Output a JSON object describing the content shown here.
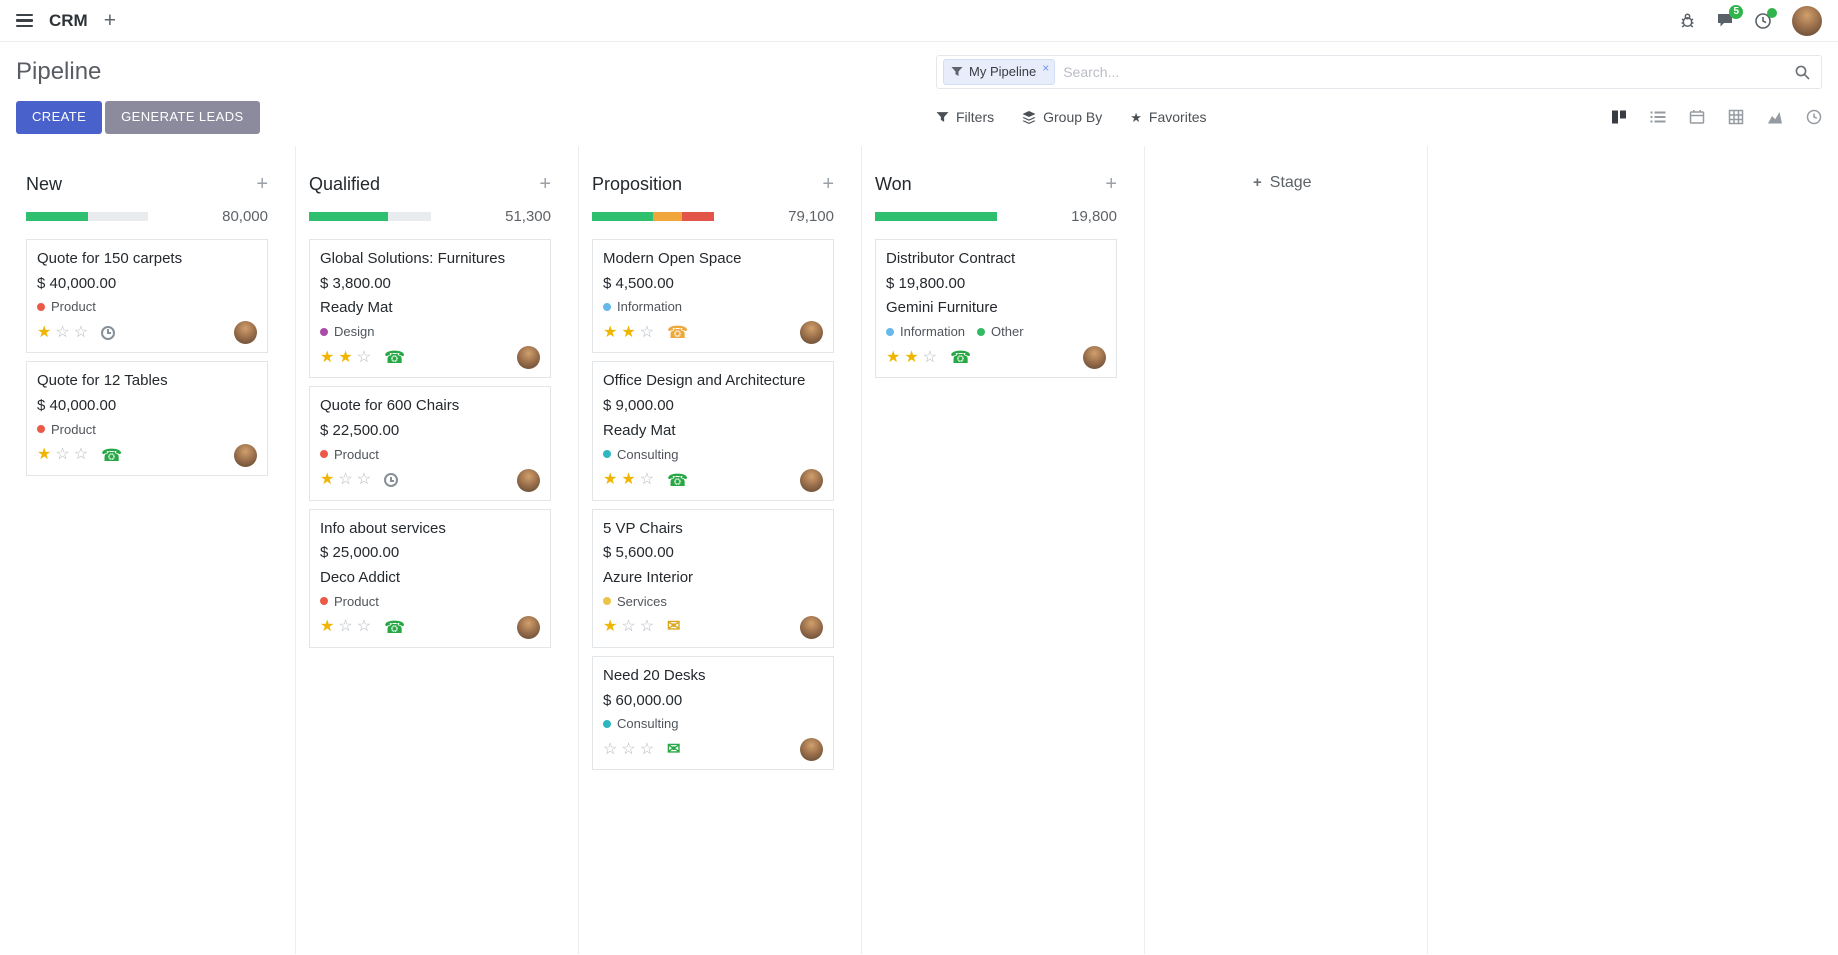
{
  "navbar": {
    "app": "CRM",
    "messages_badge": "5"
  },
  "control_panel": {
    "title": "Pipeline",
    "search": {
      "facet_label": "My Pipeline",
      "placeholder": "Search..."
    },
    "create_label": "CREATE",
    "generate_leads_label": "GENERATE LEADS",
    "filters_label": "Filters",
    "group_by_label": "Group By",
    "favorites_label": "Favorites",
    "view_switcher": [
      "kanban",
      "list",
      "calendar",
      "pivot",
      "graph",
      "activity"
    ],
    "active_view": "kanban"
  },
  "colors": {
    "primary_button": "#4961ca",
    "secondary_button": "#8b8b9d",
    "badge": "#31b44b",
    "star_active": "#efb500",
    "progress_success": "#2ec06f",
    "progress_warning": "#f0a63a",
    "progress_danger": "#e25649"
  },
  "board": {
    "add_stage_label": "Stage",
    "columns": [
      {
        "name": "New",
        "total": "80,000",
        "progress": [
          {
            "color": "#2ec06f",
            "pct": 51
          }
        ],
        "cards": [
          {
            "title": "Quote for 150 carpets",
            "amount": "$ 40,000.00",
            "tags": [
              {
                "label": "Product",
                "color": "#eb5a46"
              }
            ],
            "stars": [
              true,
              false,
              false
            ],
            "activity": {
              "icon": "clock",
              "color": "#878f98"
            }
          },
          {
            "title": "Quote for 12 Tables",
            "amount": "$ 40,000.00",
            "tags": [
              {
                "label": "Product",
                "color": "#eb5a46"
              }
            ],
            "stars": [
              true,
              false,
              false
            ],
            "activity": {
              "icon": "phone",
              "color": "#28a745"
            }
          }
        ]
      },
      {
        "name": "Qualified",
        "total": "51,300",
        "progress": [
          {
            "color": "#2ec06f",
            "pct": 65
          }
        ],
        "cards": [
          {
            "title": "Global Solutions: Furnitures",
            "amount": "$ 3,800.00",
            "partner": "Ready Mat",
            "tags": [
              {
                "label": "Design",
                "color": "#ab4ba8"
              }
            ],
            "stars": [
              true,
              true,
              false
            ],
            "activity": {
              "icon": "phone",
              "color": "#28a745"
            }
          },
          {
            "title": "Quote for 600 Chairs",
            "amount": "$ 22,500.00",
            "tags": [
              {
                "label": "Product",
                "color": "#eb5a46"
              }
            ],
            "stars": [
              true,
              false,
              false
            ],
            "activity": {
              "icon": "clock",
              "color": "#878f98"
            }
          },
          {
            "title": "Info about services",
            "amount": "$ 25,000.00",
            "partner": "Deco Addict",
            "tags": [
              {
                "label": "Product",
                "color": "#eb5a46"
              }
            ],
            "stars": [
              true,
              false,
              false
            ],
            "activity": {
              "icon": "phone",
              "color": "#28a745"
            }
          }
        ]
      },
      {
        "name": "Proposition",
        "total": "79,100",
        "progress": [
          {
            "color": "#2ec06f",
            "pct": 50
          },
          {
            "color": "#f0a63a",
            "pct": 24
          },
          {
            "color": "#e25649",
            "pct": 26
          }
        ],
        "cards": [
          {
            "title": "Modern Open Space",
            "amount": "$ 4,500.00",
            "tags": [
              {
                "label": "Information",
                "color": "#66b9e8"
              }
            ],
            "stars": [
              true,
              true,
              false
            ],
            "activity": {
              "icon": "phone",
              "color": "#efa83c"
            }
          },
          {
            "title": "Office Design and Architecture",
            "amount": "$ 9,000.00",
            "partner": "Ready Mat",
            "tags": [
              {
                "label": "Consulting",
                "color": "#2eb7c0"
              }
            ],
            "stars": [
              true,
              true,
              false
            ],
            "activity": {
              "icon": "phone",
              "color": "#28a745"
            }
          },
          {
            "title": "5 VP Chairs",
            "amount": "$ 5,600.00",
            "partner": "Azure Interior",
            "tags": [
              {
                "label": "Services",
                "color": "#ebc447"
              }
            ],
            "stars": [
              true,
              false,
              false
            ],
            "activity": {
              "icon": "envelope",
              "color": "#d9a61e"
            }
          },
          {
            "title": "Need 20 Desks",
            "amount": "$ 60,000.00",
            "tags": [
              {
                "label": "Consulting",
                "color": "#2eb7c0"
              }
            ],
            "stars": [
              false,
              false,
              false
            ],
            "activity": {
              "icon": "envelope",
              "color": "#28a745"
            }
          }
        ]
      },
      {
        "name": "Won",
        "total": "19,800",
        "progress": [
          {
            "color": "#2ec06f",
            "pct": 100
          }
        ],
        "cards": [
          {
            "title": "Distributor Contract",
            "amount": "$ 19,800.00",
            "partner": "Gemini Furniture",
            "tags": [
              {
                "label": "Information",
                "color": "#66b9e8"
              },
              {
                "label": "Other",
                "color": "#34b965"
              }
            ],
            "stars": [
              true,
              true,
              false
            ],
            "activity": {
              "icon": "phone",
              "color": "#28a745"
            }
          }
        ]
      }
    ]
  }
}
